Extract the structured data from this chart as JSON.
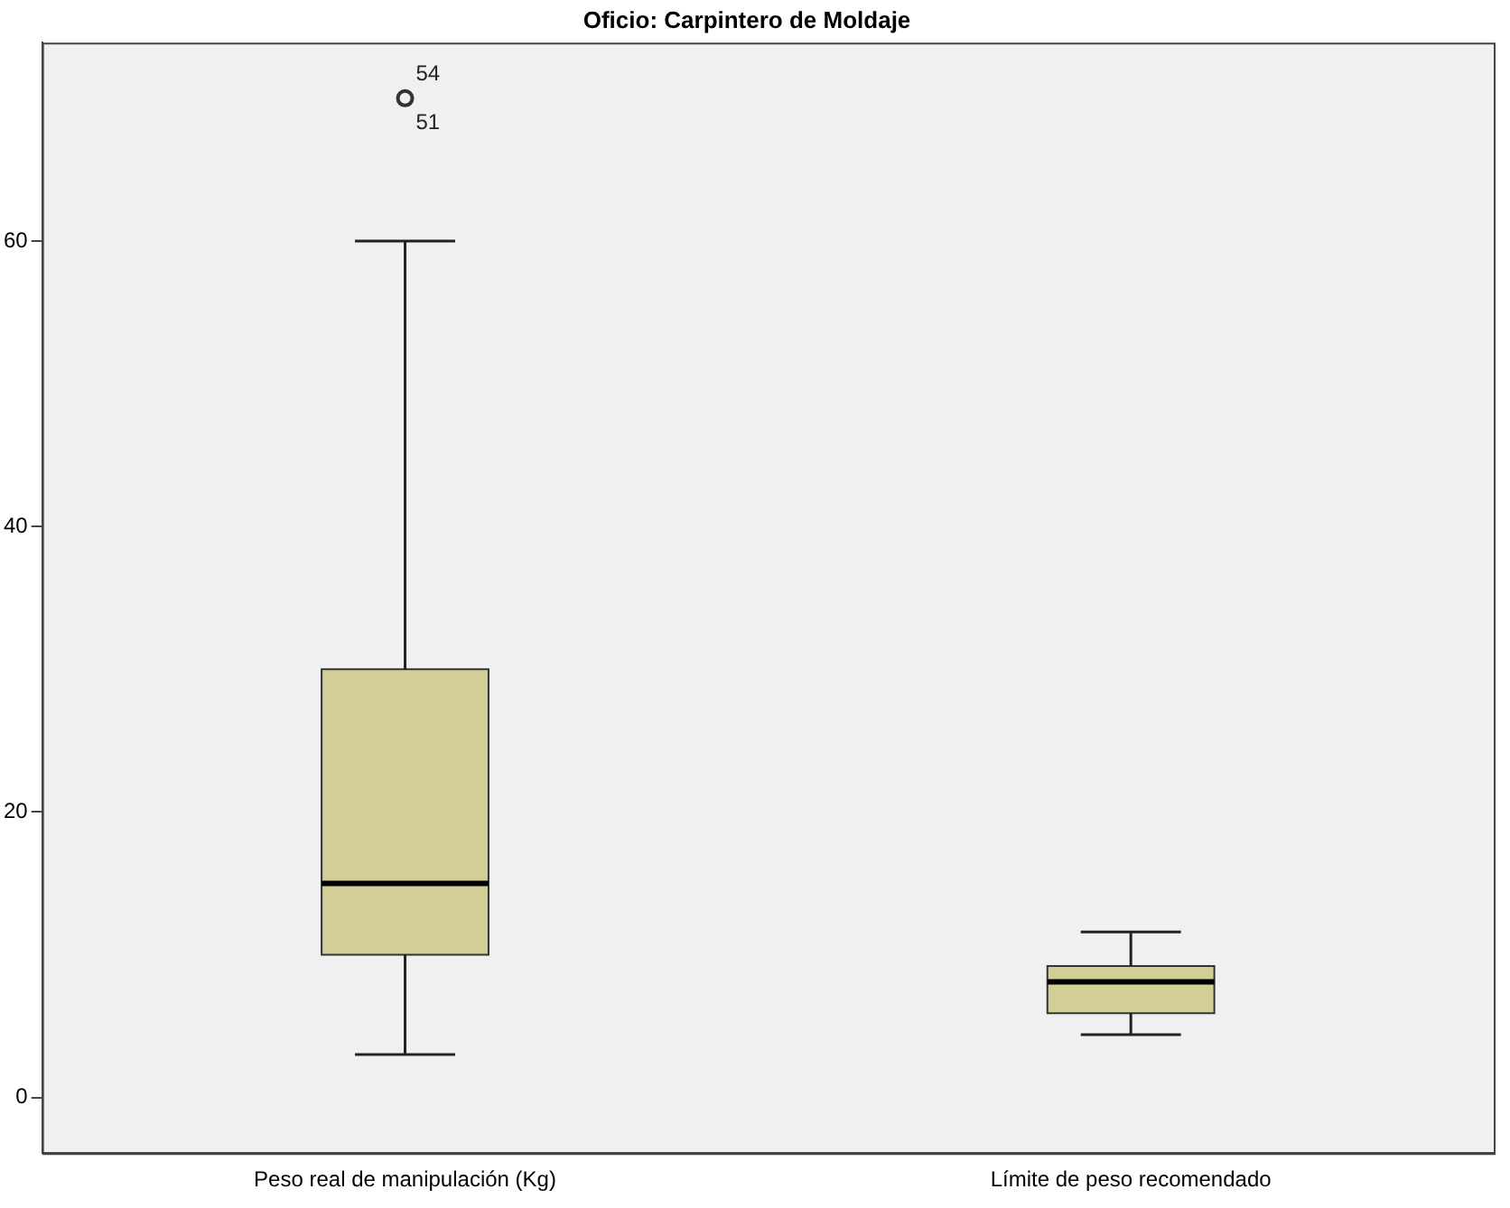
{
  "chart_data": {
    "type": "box",
    "title": "Oficio: Carpintero de Moldaje",
    "categories": [
      "Peso real de manipulación (Kg)",
      "Límite de peso recomendado"
    ],
    "color": "#d3ce97",
    "boxes": [
      {
        "low": 3,
        "q1": 10,
        "median": 15,
        "q3": 30,
        "high": 60,
        "outliers": [
          70
        ]
      },
      {
        "low": 4.4,
        "q1": 5.9,
        "median": 8.1,
        "q3": 9.2,
        "high": 11.6
      }
    ],
    "ylim": [
      -3.9,
      73.9
    ],
    "yticks": [
      0,
      20,
      40,
      60
    ],
    "grid": false,
    "legend": false,
    "annotations": [
      "54",
      "51"
    ]
  }
}
